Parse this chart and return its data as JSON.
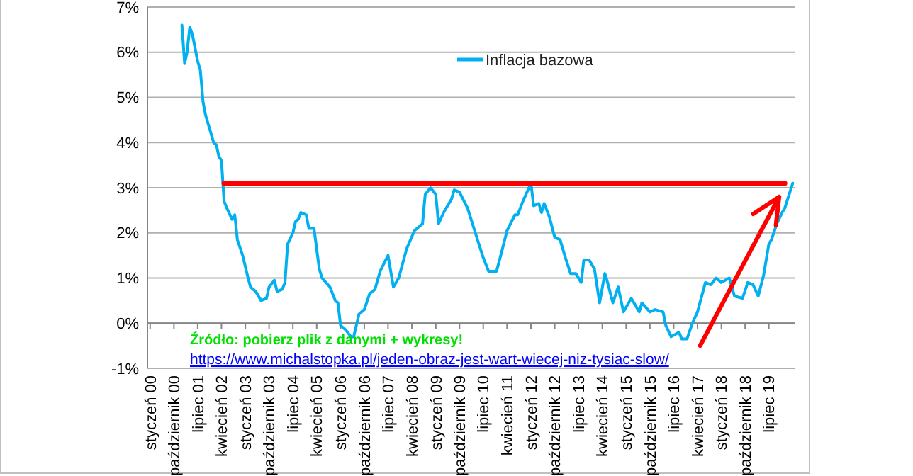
{
  "chart_data": {
    "type": "line",
    "x": [
      "2001-01",
      "2001-02",
      "2001-03",
      "2001-04",
      "2001-05",
      "2001-07",
      "2001-08",
      "2001-09",
      "2001-10",
      "2001-11",
      "2002-01",
      "2002-02",
      "2002-03",
      "2002-04",
      "2002-05",
      "2002-06",
      "2002-08",
      "2002-09",
      "2002-10",
      "2002-12",
      "2003-02",
      "2003-03",
      "2003-05",
      "2003-07",
      "2003-09",
      "2003-10",
      "2003-12",
      "2004-01",
      "2004-03",
      "2004-04",
      "2004-05",
      "2004-07",
      "2004-08",
      "2004-09",
      "2004-10",
      "2004-12",
      "2005-01",
      "2005-03",
      "2005-05",
      "2005-06",
      "2005-09",
      "2005-11",
      "2005-12",
      "2006-01",
      "2006-03",
      "2006-05",
      "2006-06",
      "2006-07",
      "2006-08",
      "2006-10",
      "2006-12",
      "2007-02",
      "2007-04",
      "2007-07",
      "2007-09",
      "2007-11",
      "2008-02",
      "2008-05",
      "2008-08",
      "2008-09",
      "2008-11",
      "2009-01",
      "2009-02",
      "2009-04",
      "2009-07",
      "2009-08",
      "2009-10",
      "2010-01",
      "2010-04",
      "2010-07",
      "2010-09",
      "2010-12",
      "2011-02",
      "2011-04",
      "2011-07",
      "2011-08",
      "2011-10",
      "2012-01",
      "2012-02",
      "2012-04",
      "2012-05",
      "2012-06",
      "2012-08",
      "2012-10",
      "2012-12",
      "2013-02",
      "2013-04",
      "2013-06",
      "2013-08",
      "2013-09",
      "2013-11",
      "2014-01",
      "2014-03",
      "2014-05",
      "2014-06",
      "2014-08",
      "2014-10",
      "2014-12",
      "2015-03",
      "2015-06",
      "2015-07",
      "2015-10",
      "2015-12",
      "2016-03",
      "2016-04",
      "2016-06",
      "2016-09",
      "2016-10",
      "2016-12",
      "2017-02",
      "2017-04",
      "2017-07",
      "2017-09",
      "2017-11",
      "2018-01",
      "2018-04",
      "2018-06",
      "2018-09",
      "2018-11",
      "2019-01",
      "2019-03",
      "2019-05",
      "2019-07",
      "2019-08",
      "2019-10",
      "2019-12",
      "2020-01",
      "2020-04"
    ],
    "series": [
      {
        "name": "Inflacja bazowa",
        "color": "#00b0f0",
        "values": [
          6.6,
          5.75,
          6.0,
          6.55,
          6.4,
          5.8,
          5.6,
          4.9,
          4.6,
          4.4,
          4.0,
          3.95,
          3.7,
          3.6,
          2.7,
          2.55,
          2.3,
          2.4,
          1.85,
          1.5,
          1.0,
          0.8,
          0.7,
          0.5,
          0.55,
          0.8,
          0.95,
          0.7,
          0.75,
          0.9,
          1.75,
          2.0,
          2.25,
          2.3,
          2.45,
          2.4,
          2.1,
          2.1,
          1.2,
          1.0,
          0.8,
          0.5,
          0.45,
          -0.05,
          -0.15,
          -0.3,
          -0.3,
          -0.05,
          0.2,
          0.3,
          0.65,
          0.75,
          1.15,
          1.5,
          0.8,
          1.0,
          1.65,
          2.05,
          2.2,
          2.85,
          3.0,
          2.85,
          2.2,
          2.45,
          2.75,
          2.95,
          2.9,
          2.55,
          2.0,
          1.45,
          1.15,
          1.15,
          1.6,
          2.05,
          2.4,
          2.4,
          2.7,
          3.1,
          2.6,
          2.65,
          2.45,
          2.65,
          2.35,
          1.9,
          1.85,
          1.45,
          1.1,
          1.1,
          0.9,
          1.4,
          1.4,
          1.2,
          0.45,
          1.1,
          0.9,
          0.45,
          0.8,
          0.25,
          0.55,
          0.25,
          0.45,
          0.25,
          0.3,
          0.25,
          -0.05,
          -0.3,
          -0.2,
          -0.35,
          -0.35,
          0.0,
          0.25,
          0.9,
          0.85,
          1.0,
          0.9,
          1.0,
          0.6,
          0.55,
          0.9,
          0.85,
          0.6,
          1.05,
          1.75,
          1.85,
          2.2,
          2.45,
          2.55,
          3.1
        ]
      },
      {
        "type": "line",
        "color": "#ff0000",
        "x": [
          "2002-05",
          "2020-01"
        ],
        "values": [
          3.1,
          3.1
        ]
      }
    ],
    "xlim": [
      "1999-12",
      "2020-05"
    ],
    "xticks": [
      {
        "value": "2000-01",
        "label": "styczeń 00"
      },
      {
        "value": "2000-10",
        "label": "październik 00"
      },
      {
        "value": "2001-07",
        "label": "lipiec 01"
      },
      {
        "value": "2002-04",
        "label": "kwiecień 02"
      },
      {
        "value": "2003-01",
        "label": "styczeń 03"
      },
      {
        "value": "2003-10",
        "label": "październik 03"
      },
      {
        "value": "2004-07",
        "label": "lipiec 04"
      },
      {
        "value": "2005-04",
        "label": "kwiecień 05"
      },
      {
        "value": "2006-01",
        "label": "styczeń 06"
      },
      {
        "value": "2006-10",
        "label": "październik 06"
      },
      {
        "value": "2007-07",
        "label": "lipiec 07"
      },
      {
        "value": "2008-04",
        "label": "kwiecień 08"
      },
      {
        "value": "2009-01",
        "label": "styczeń 09"
      },
      {
        "value": "2009-10",
        "label": "październik 09"
      },
      {
        "value": "2010-07",
        "label": "lipiec 10"
      },
      {
        "value": "2011-04",
        "label": "kwiecień 11"
      },
      {
        "value": "2012-01",
        "label": "styczeń 12"
      },
      {
        "value": "2012-10",
        "label": "październik 12"
      },
      {
        "value": "2013-07",
        "label": "lipiec 13"
      },
      {
        "value": "2014-04",
        "label": "kwiecień 14"
      },
      {
        "value": "2015-01",
        "label": "styczeń 15"
      },
      {
        "value": "2015-10",
        "label": "październik 15"
      },
      {
        "value": "2016-07",
        "label": "lipiec 16"
      },
      {
        "value": "2017-04",
        "label": "kwiecień 17"
      },
      {
        "value": "2018-01",
        "label": "styczeń 18"
      },
      {
        "value": "2018-10",
        "label": "październik 18"
      },
      {
        "value": "2019-07",
        "label": "lipiec 19"
      }
    ],
    "ylim": [
      -1,
      7
    ],
    "yticks": [
      {
        "value": -1,
        "label": "-1%"
      },
      {
        "value": 0,
        "label": "0%"
      },
      {
        "value": 1,
        "label": "1%"
      },
      {
        "value": 2,
        "label": "2%"
      },
      {
        "value": 3,
        "label": "3%"
      },
      {
        "value": 4,
        "label": "4%"
      },
      {
        "value": 5,
        "label": "5%"
      },
      {
        "value": 6,
        "label": "6%"
      },
      {
        "value": 7,
        "label": "7%"
      }
    ],
    "grid": "y",
    "legend": "top",
    "annotations": [
      "Źródło: pobierz plik z danymi + wykresy!",
      "https://www.michalstopka.pl/jeden-obraz-jest-wart-wiecej-niz-tysiac-slow/"
    ]
  }
}
